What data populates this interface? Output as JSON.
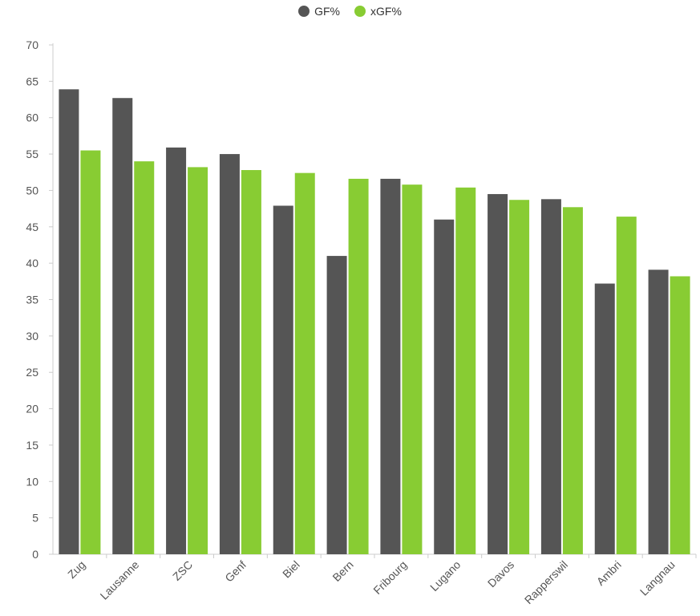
{
  "chart_data": {
    "type": "bar",
    "categories": [
      "Zug",
      "Lausanne",
      "ZSC",
      "Genf",
      "Biel",
      "Bern",
      "Fribourg",
      "Lugano",
      "Davos",
      "Rapperswil",
      "Ambri",
      "Langnau"
    ],
    "series": [
      {
        "name": "GF%",
        "color": "#555555",
        "values": [
          63.9,
          62.7,
          55.9,
          55.0,
          47.9,
          41.0,
          51.6,
          46.0,
          49.5,
          48.8,
          37.2,
          39.1
        ]
      },
      {
        "name": "xGF%",
        "color": "#88cc33",
        "values": [
          55.5,
          54.0,
          53.2,
          52.8,
          52.4,
          51.6,
          50.8,
          50.4,
          48.7,
          47.7,
          46.4,
          38.2
        ]
      }
    ],
    "ylim": [
      0,
      70
    ],
    "yticks": [
      0,
      5,
      10,
      15,
      20,
      25,
      30,
      35,
      40,
      45,
      50,
      55,
      60,
      65,
      70
    ],
    "grid": false,
    "legend_position": "top-center"
  }
}
